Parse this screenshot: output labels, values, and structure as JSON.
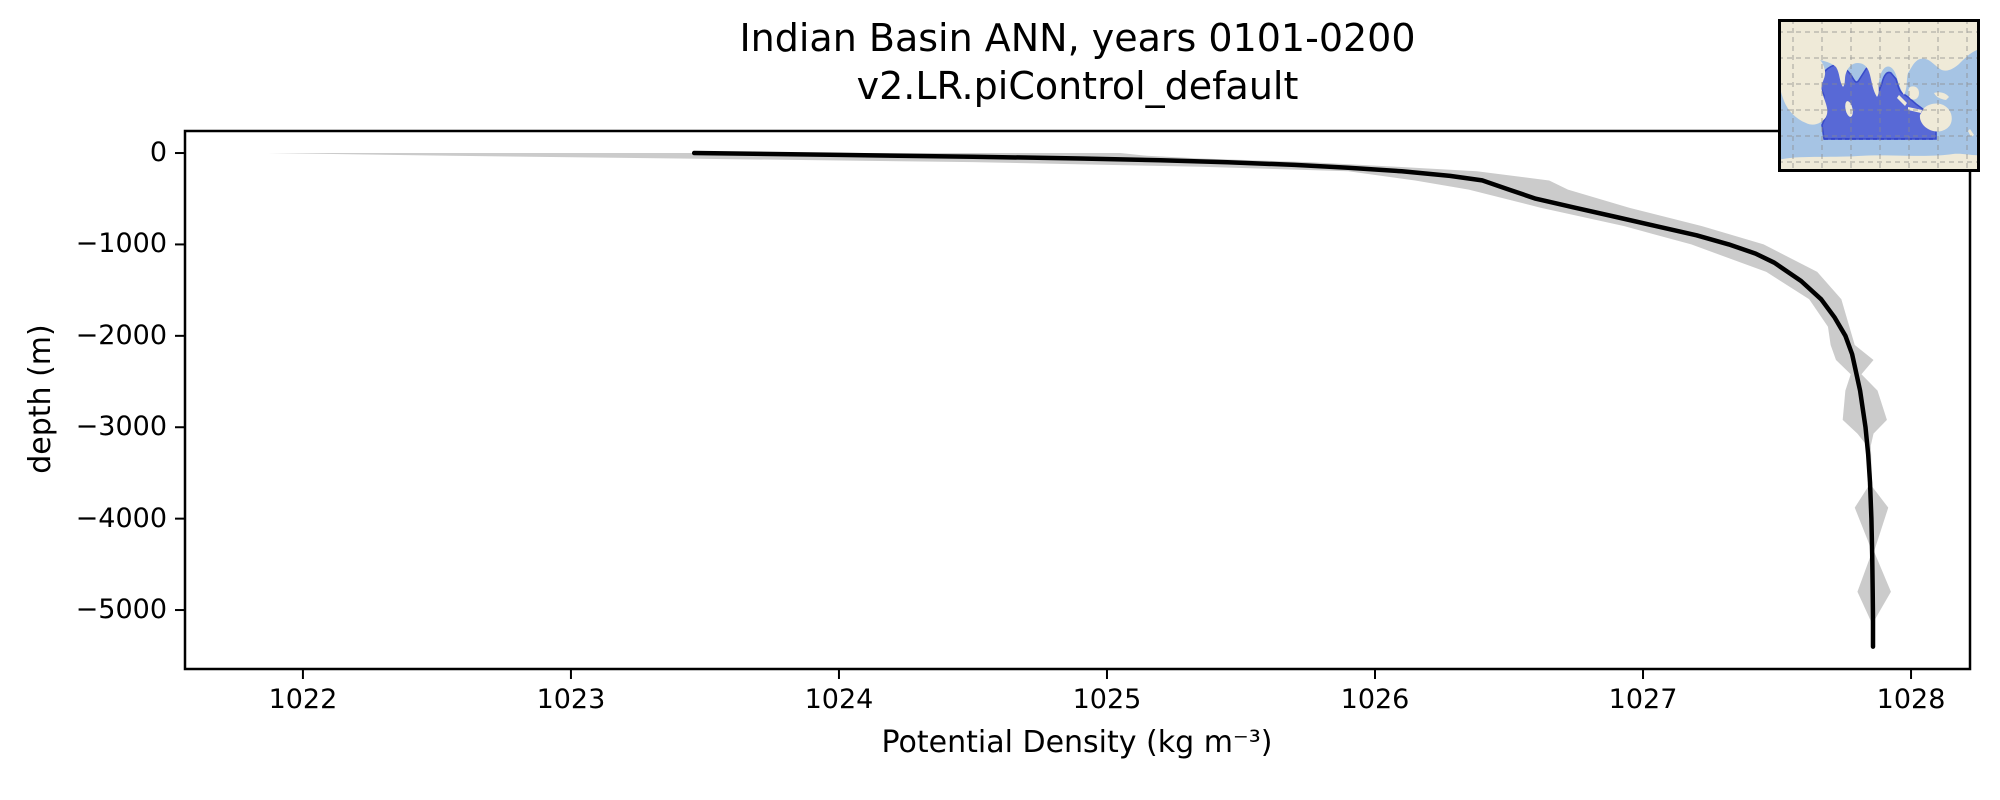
{
  "figure": {
    "title_line1": "Indian Basin ANN, years 0101-0200",
    "title_line2": "v2.LR.piControl_default"
  },
  "axes": {
    "xlabel": "Potential Density (kg m⁻³)",
    "ylabel": "depth (m)",
    "x_ticks": [
      {
        "value": 1022,
        "label": "1022"
      },
      {
        "value": 1023,
        "label": "1023"
      },
      {
        "value": 1024,
        "label": "1024"
      },
      {
        "value": 1025,
        "label": "1025"
      },
      {
        "value": 1026,
        "label": "1026"
      },
      {
        "value": 1027,
        "label": "1027"
      },
      {
        "value": 1028,
        "label": "1028"
      }
    ],
    "y_ticks": [
      {
        "value": 0,
        "label": "0"
      },
      {
        "value": -1000,
        "label": "−1000"
      },
      {
        "value": -2000,
        "label": "−2000"
      },
      {
        "value": -3000,
        "label": "−3000"
      },
      {
        "value": -4000,
        "label": "−4000"
      },
      {
        "value": -5000,
        "label": "−5000"
      }
    ]
  },
  "chart_data": {
    "type": "line",
    "title": "Indian Basin ANN, years 0101-0200 | v2.LR.piControl_default",
    "xlabel": "Potential Density (kg m⁻³)",
    "ylabel": "depth (m)",
    "xlim": [
      1021.56,
      1028.22
    ],
    "ylim": [
      -5645,
      241
    ],
    "grid": false,
    "legend": "none",
    "line_color": "#000000",
    "line_width": 4.5,
    "band_color": "#cbcbcb",
    "frame_color": "#000000",
    "series": [
      {
        "name": "mean potential density profile",
        "x": [
          1023.46,
          1024.0,
          1024.5,
          1024.9,
          1025.2,
          1025.45,
          1025.7,
          1025.9,
          1026.1,
          1026.28,
          1026.4,
          1026.45,
          1026.5,
          1026.6,
          1026.75,
          1026.9,
          1027.05,
          1027.2,
          1027.32,
          1027.42,
          1027.49,
          1027.59,
          1027.665,
          1027.715,
          1027.755,
          1027.78,
          1027.795,
          1027.81,
          1027.82,
          1027.83,
          1027.84,
          1027.847,
          1027.852,
          1027.855,
          1027.857,
          1027.858,
          1027.858
        ],
        "y": [
          0,
          -20,
          -40,
          -60,
          -80,
          -100,
          -130,
          -160,
          -200,
          -250,
          -300,
          -350,
          -400,
          -500,
          -600,
          -700,
          -800,
          -900,
          -1000,
          -1100,
          -1200,
          -1400,
          -1600,
          -1800,
          -2000,
          -2200,
          -2400,
          -2600,
          -2800,
          -3000,
          -3300,
          -3600,
          -4000,
          -4400,
          -4800,
          -5100,
          -5400
        ]
      }
    ],
    "band": {
      "name": "spread envelope (shaded)",
      "depth": [
        0,
        -30,
        -60,
        -100,
        -150,
        -200,
        -300,
        -400,
        -600,
        -800,
        -1000,
        -1300,
        -1600,
        -1900,
        -2100,
        -2265,
        -2420,
        -2600,
        -2920,
        -3070,
        -3200,
        -3650,
        -3880,
        -4360,
        -4800,
        -5120,
        -5400
      ],
      "lo": [
        1021.87,
        1022.55,
        1023.4,
        1024.5,
        1025.35,
        1025.9,
        1026.15,
        1026.35,
        1026.62,
        1026.93,
        1027.18,
        1027.46,
        1027.62,
        1027.69,
        1027.7,
        1027.72,
        1027.775,
        1027.755,
        1027.745,
        1027.8,
        1027.835,
        1027.84,
        1027.79,
        1027.855,
        1027.8,
        1027.85,
        1027.852
      ],
      "hi": [
        1025.05,
        1025.15,
        1025.35,
        1025.75,
        1026.08,
        1026.38,
        1026.65,
        1026.72,
        1026.95,
        1027.22,
        1027.45,
        1027.65,
        1027.74,
        1027.77,
        1027.79,
        1027.86,
        1027.815,
        1027.875,
        1027.91,
        1027.86,
        1027.85,
        1027.855,
        1027.915,
        1027.862,
        1027.925,
        1027.862,
        1027.86
      ]
    }
  },
  "inset_map": {
    "highlighted_region": "Indian Ocean basin",
    "ocean_color": "#a6c4e4",
    "land_color": "#efead8",
    "highlight_fill": "#5060d5",
    "highlight_border": "#2e3ec8",
    "grid_color": "#8a8a8a",
    "frame_color": "#000000"
  }
}
